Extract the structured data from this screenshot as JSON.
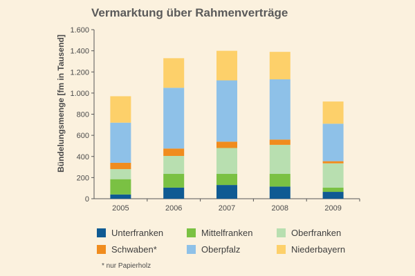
{
  "chart_data": {
    "type": "bar",
    "stacked": true,
    "title": "Vermarktung über Rahmenverträge",
    "ylabel": "Bündelungsmenge   [fm in Tausend]",
    "xlabel": "",
    "categories": [
      "2005",
      "2006",
      "2007",
      "2008",
      "2009"
    ],
    "ylim": [
      0,
      1600
    ],
    "yticks": [
      0,
      200,
      400,
      600,
      800,
      1000,
      1200,
      1400,
      1600
    ],
    "ytick_labels": [
      "0",
      "200",
      "400",
      "600",
      "800",
      "1.000",
      "1.200",
      "1.400",
      "1.600"
    ],
    "grid": false,
    "legend_position": "bottom",
    "series": [
      {
        "name": "Unterfranken",
        "color": "#0f5a93",
        "values": [
          40,
          105,
          130,
          115,
          65
        ]
      },
      {
        "name": "Mittelfranken",
        "color": "#7ac143",
        "values": [
          145,
          130,
          105,
          120,
          40
        ]
      },
      {
        "name": "Oberfranken",
        "color": "#b8dfb0",
        "values": [
          95,
          170,
          245,
          275,
          230
        ]
      },
      {
        "name": "Schwaben",
        "color": "#f08c1e",
        "values": [
          60,
          70,
          60,
          50,
          20
        ]
      },
      {
        "name": "Oberpfalz",
        "color": "#8ec1e8",
        "values": [
          380,
          575,
          580,
          570,
          355
        ]
      },
      {
        "name": "Niederbayern",
        "color": "#fdd06a",
        "values": [
          250,
          280,
          280,
          260,
          210
        ]
      }
    ],
    "legend_labels": [
      "Unterfranken",
      "Mittelfranken",
      "Oberfranken",
      "Schwaben*",
      "Oberpfalz",
      "Niederbayern"
    ],
    "footnote": "*  nur Papierholz"
  }
}
